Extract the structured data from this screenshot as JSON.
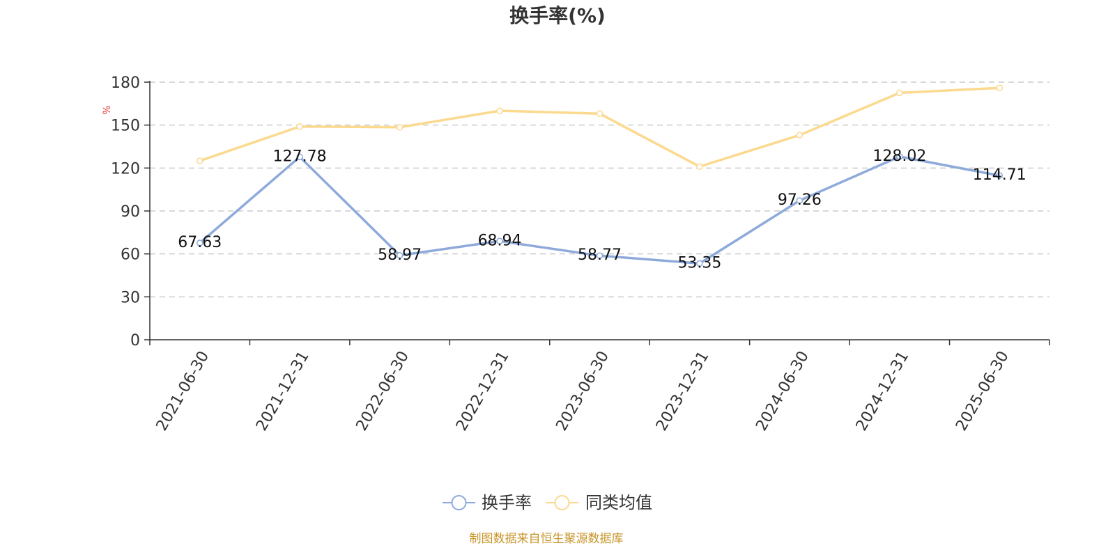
{
  "chart_data": {
    "type": "line",
    "title": "换手率(%)",
    "ylabel": "%",
    "xlabel": "",
    "categories": [
      "2021-06-30",
      "2021-12-31",
      "2022-06-30",
      "2022-12-31",
      "2023-06-30",
      "2023-12-31",
      "2024-06-30",
      "2024-12-31",
      "2025-06-30"
    ],
    "ylim": [
      0,
      180
    ],
    "yticks": [
      "0",
      "30",
      "60",
      "90",
      "120",
      "150",
      "180"
    ],
    "grid": true,
    "legend_position": "bottom",
    "series": [
      {
        "name": "换手率",
        "color": "#8eaadb",
        "values": [
          67.63,
          127.78,
          58.97,
          68.94,
          58.77,
          53.35,
          97.26,
          128.02,
          114.71
        ],
        "labels": [
          "67.63",
          "127.78",
          "58.97",
          "68.94",
          "58.77",
          "53.35",
          "97.26",
          "128.02",
          "114.71"
        ]
      },
      {
        "name": "同类均值",
        "color": "#fbd98f",
        "values": [
          125.0,
          149.0,
          148.5,
          160.0,
          158.0,
          121.0,
          143.0,
          172.5,
          176.0
        ]
      }
    ],
    "source": "制图数据来自恒生聚源数据库",
    "ylabel_color": "#e53935",
    "source_color": "#c8962a"
  }
}
